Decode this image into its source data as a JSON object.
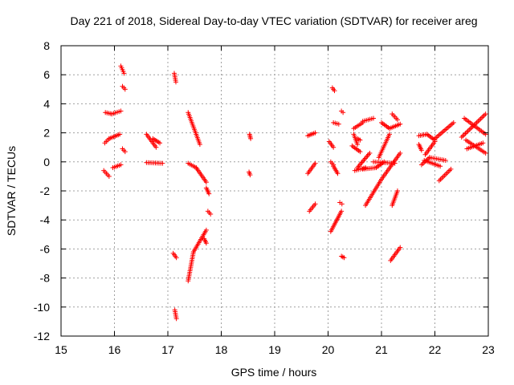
{
  "chart_data": {
    "type": "scatter",
    "title": "Day 221 of 2018, Sidereal Day-to-day VTEC variation (SDTVAR) for receiver areg",
    "xlabel": "GPS time / hours",
    "ylabel": "SDTVAR / TECUs",
    "xlim": [
      15,
      23
    ],
    "ylim": [
      -12,
      8
    ],
    "xticks": [
      15,
      16,
      17,
      18,
      19,
      20,
      21,
      22,
      23
    ],
    "yticks": [
      -12,
      -10,
      -8,
      -6,
      -4,
      -2,
      0,
      2,
      4,
      6,
      8
    ],
    "grid": true,
    "marker": "plus",
    "color": "#ff0000",
    "segments": [
      {
        "x": [
          15.8,
          15.9
        ],
        "y": [
          -0.6,
          -1.0
        ]
      },
      {
        "x": [
          15.83,
          15.95
        ],
        "y": [
          3.4,
          3.3
        ]
      },
      {
        "x": [
          15.95,
          16.12
        ],
        "y": [
          3.3,
          3.5
        ]
      },
      {
        "x": [
          15.82,
          15.9
        ],
        "y": [
          1.3,
          1.6
        ]
      },
      {
        "x": [
          15.9,
          16.1
        ],
        "y": [
          1.6,
          1.9
        ]
      },
      {
        "x": [
          15.97,
          16.12
        ],
        "y": [
          -0.4,
          -0.2
        ]
      },
      {
        "x": [
          16.12,
          16.18
        ],
        "y": [
          6.6,
          6.1
        ]
      },
      {
        "x": [
          16.15,
          16.2
        ],
        "y": [
          5.2,
          5.0
        ]
      },
      {
        "x": [
          16.15,
          16.2
        ],
        "y": [
          0.9,
          0.7
        ]
      },
      {
        "x": [
          16.6,
          16.78
        ],
        "y": [
          1.9,
          1.0
        ]
      },
      {
        "x": [
          16.72,
          16.85
        ],
        "y": [
          1.6,
          1.3
        ]
      },
      {
        "x": [
          16.6,
          16.9
        ],
        "y": [
          -0.05,
          -0.1
        ]
      },
      {
        "x": [
          17.12,
          17.15
        ],
        "y": [
          6.1,
          5.5
        ]
      },
      {
        "x": [
          17.1,
          17.16
        ],
        "y": [
          -6.3,
          -6.6
        ]
      },
      {
        "x": [
          17.13,
          17.16
        ],
        "y": [
          -10.2,
          -10.8
        ]
      },
      {
        "x": [
          17.38,
          17.6
        ],
        "y": [
          3.4,
          1.2
        ]
      },
      {
        "x": [
          17.38,
          17.53
        ],
        "y": [
          -0.1,
          -0.4
        ]
      },
      {
        "x": [
          17.53,
          17.72
        ],
        "y": [
          -0.4,
          -1.4
        ]
      },
      {
        "x": [
          17.72,
          17.77
        ],
        "y": [
          -1.8,
          -2.2
        ]
      },
      {
        "x": [
          17.75,
          17.8
        ],
        "y": [
          -3.4,
          -3.6
        ]
      },
      {
        "x": [
          17.38,
          17.48
        ],
        "y": [
          -8.2,
          -6.2
        ]
      },
      {
        "x": [
          17.48,
          17.72
        ],
        "y": [
          -6.2,
          -4.7
        ]
      },
      {
        "x": [
          17.68,
          17.72
        ],
        "y": [
          -5.3,
          -5.6
        ]
      },
      {
        "x": [
          18.53,
          18.55
        ],
        "y": [
          1.9,
          1.6
        ]
      },
      {
        "x": [
          18.52,
          18.54
        ],
        "y": [
          -0.7,
          -0.9
        ]
      },
      {
        "x": [
          19.62,
          19.76
        ],
        "y": [
          1.8,
          2.0
        ]
      },
      {
        "x": [
          19.62,
          19.76
        ],
        "y": [
          -0.8,
          -0.1
        ]
      },
      {
        "x": [
          19.65,
          19.76
        ],
        "y": [
          -3.4,
          -2.9
        ]
      },
      {
        "x": [
          20.08,
          20.12
        ],
        "y": [
          5.1,
          4.9
        ]
      },
      {
        "x": [
          20.02,
          20.1
        ],
        "y": [
          1.4,
          1.0
        ]
      },
      {
        "x": [
          20.1,
          20.2
        ],
        "y": [
          2.7,
          2.6
        ]
      },
      {
        "x": [
          20.25,
          20.28
        ],
        "y": [
          3.5,
          3.4
        ]
      },
      {
        "x": [
          20.05,
          20.1
        ],
        "y": [
          0.0,
          -0.2
        ]
      },
      {
        "x": [
          20.1,
          20.18
        ],
        "y": [
          -0.3,
          -0.8
        ]
      },
      {
        "x": [
          20.05,
          20.25
        ],
        "y": [
          -4.8,
          -3.4
        ]
      },
      {
        "x": [
          20.22,
          20.26
        ],
        "y": [
          -2.8,
          -2.9
        ]
      },
      {
        "x": [
          20.25,
          20.3
        ],
        "y": [
          -6.5,
          -6.6
        ]
      },
      {
        "x": [
          20.45,
          20.6
        ],
        "y": [
          1.1,
          0.7
        ]
      },
      {
        "x": [
          20.5,
          20.7
        ],
        "y": [
          -0.6,
          -0.4
        ]
      },
      {
        "x": [
          20.48,
          20.55
        ],
        "y": [
          1.9,
          1.2
        ]
      },
      {
        "x": [
          20.55,
          20.6
        ],
        "y": [
          1.6,
          1.5
        ]
      },
      {
        "x": [
          20.48,
          20.65
        ],
        "y": [
          2.3,
          2.7
        ]
      },
      {
        "x": [
          20.65,
          20.85
        ],
        "y": [
          2.8,
          3.0
        ]
      },
      {
        "x": [
          20.55,
          20.78
        ],
        "y": [
          -0.4,
          0.6
        ]
      },
      {
        "x": [
          20.65,
          20.9
        ],
        "y": [
          -0.5,
          -0.4
        ]
      },
      {
        "x": [
          20.9,
          21.05
        ],
        "y": [
          -0.4,
          0.0
        ]
      },
      {
        "x": [
          20.7,
          21.0
        ],
        "y": [
          -3.0,
          -1.2
        ]
      },
      {
        "x": [
          21.0,
          21.35
        ],
        "y": [
          -1.2,
          0.6
        ]
      },
      {
        "x": [
          20.85,
          21.25
        ],
        "y": [
          0.0,
          -0.1
        ]
      },
      {
        "x": [
          20.95,
          21.15
        ],
        "y": [
          0.3,
          1.9
        ]
      },
      {
        "x": [
          21.0,
          21.15
        ],
        "y": [
          2.7,
          2.3
        ]
      },
      {
        "x": [
          21.15,
          21.35
        ],
        "y": [
          2.3,
          2.6
        ]
      },
      {
        "x": [
          21.2,
          21.3
        ],
        "y": [
          3.3,
          2.9
        ]
      },
      {
        "x": [
          21.2,
          21.3
        ],
        "y": [
          -3.0,
          -2.0
        ]
      },
      {
        "x": [
          21.17,
          21.35
        ],
        "y": [
          -6.8,
          -5.9
        ]
      },
      {
        "x": [
          21.7,
          21.85
        ],
        "y": [
          1.8,
          1.9
        ]
      },
      {
        "x": [
          21.7,
          21.75
        ],
        "y": [
          1.2,
          0.8
        ]
      },
      {
        "x": [
          21.85,
          22.0
        ],
        "y": [
          1.9,
          1.5
        ]
      },
      {
        "x": [
          21.75,
          21.9
        ],
        "y": [
          -0.2,
          0.3
        ]
      },
      {
        "x": [
          21.9,
          22.2
        ],
        "y": [
          0.3,
          0.1
        ]
      },
      {
        "x": [
          21.82,
          22.0
        ],
        "y": [
          0.5,
          1.4
        ]
      },
      {
        "x": [
          22.0,
          22.35
        ],
        "y": [
          1.6,
          2.7
        ]
      },
      {
        "x": [
          21.8,
          22.1
        ],
        "y": [
          0.1,
          -0.3
        ]
      },
      {
        "x": [
          22.08,
          22.3
        ],
        "y": [
          -1.3,
          -0.5
        ]
      },
      {
        "x": [
          22.5,
          22.95
        ],
        "y": [
          1.7,
          3.3
        ]
      },
      {
        "x": [
          22.55,
          22.95
        ],
        "y": [
          3.0,
          1.9
        ]
      },
      {
        "x": [
          22.58,
          22.95
        ],
        "y": [
          1.5,
          0.6
        ]
      },
      {
        "x": [
          22.6,
          22.9
        ],
        "y": [
          0.9,
          1.3
        ]
      }
    ]
  }
}
